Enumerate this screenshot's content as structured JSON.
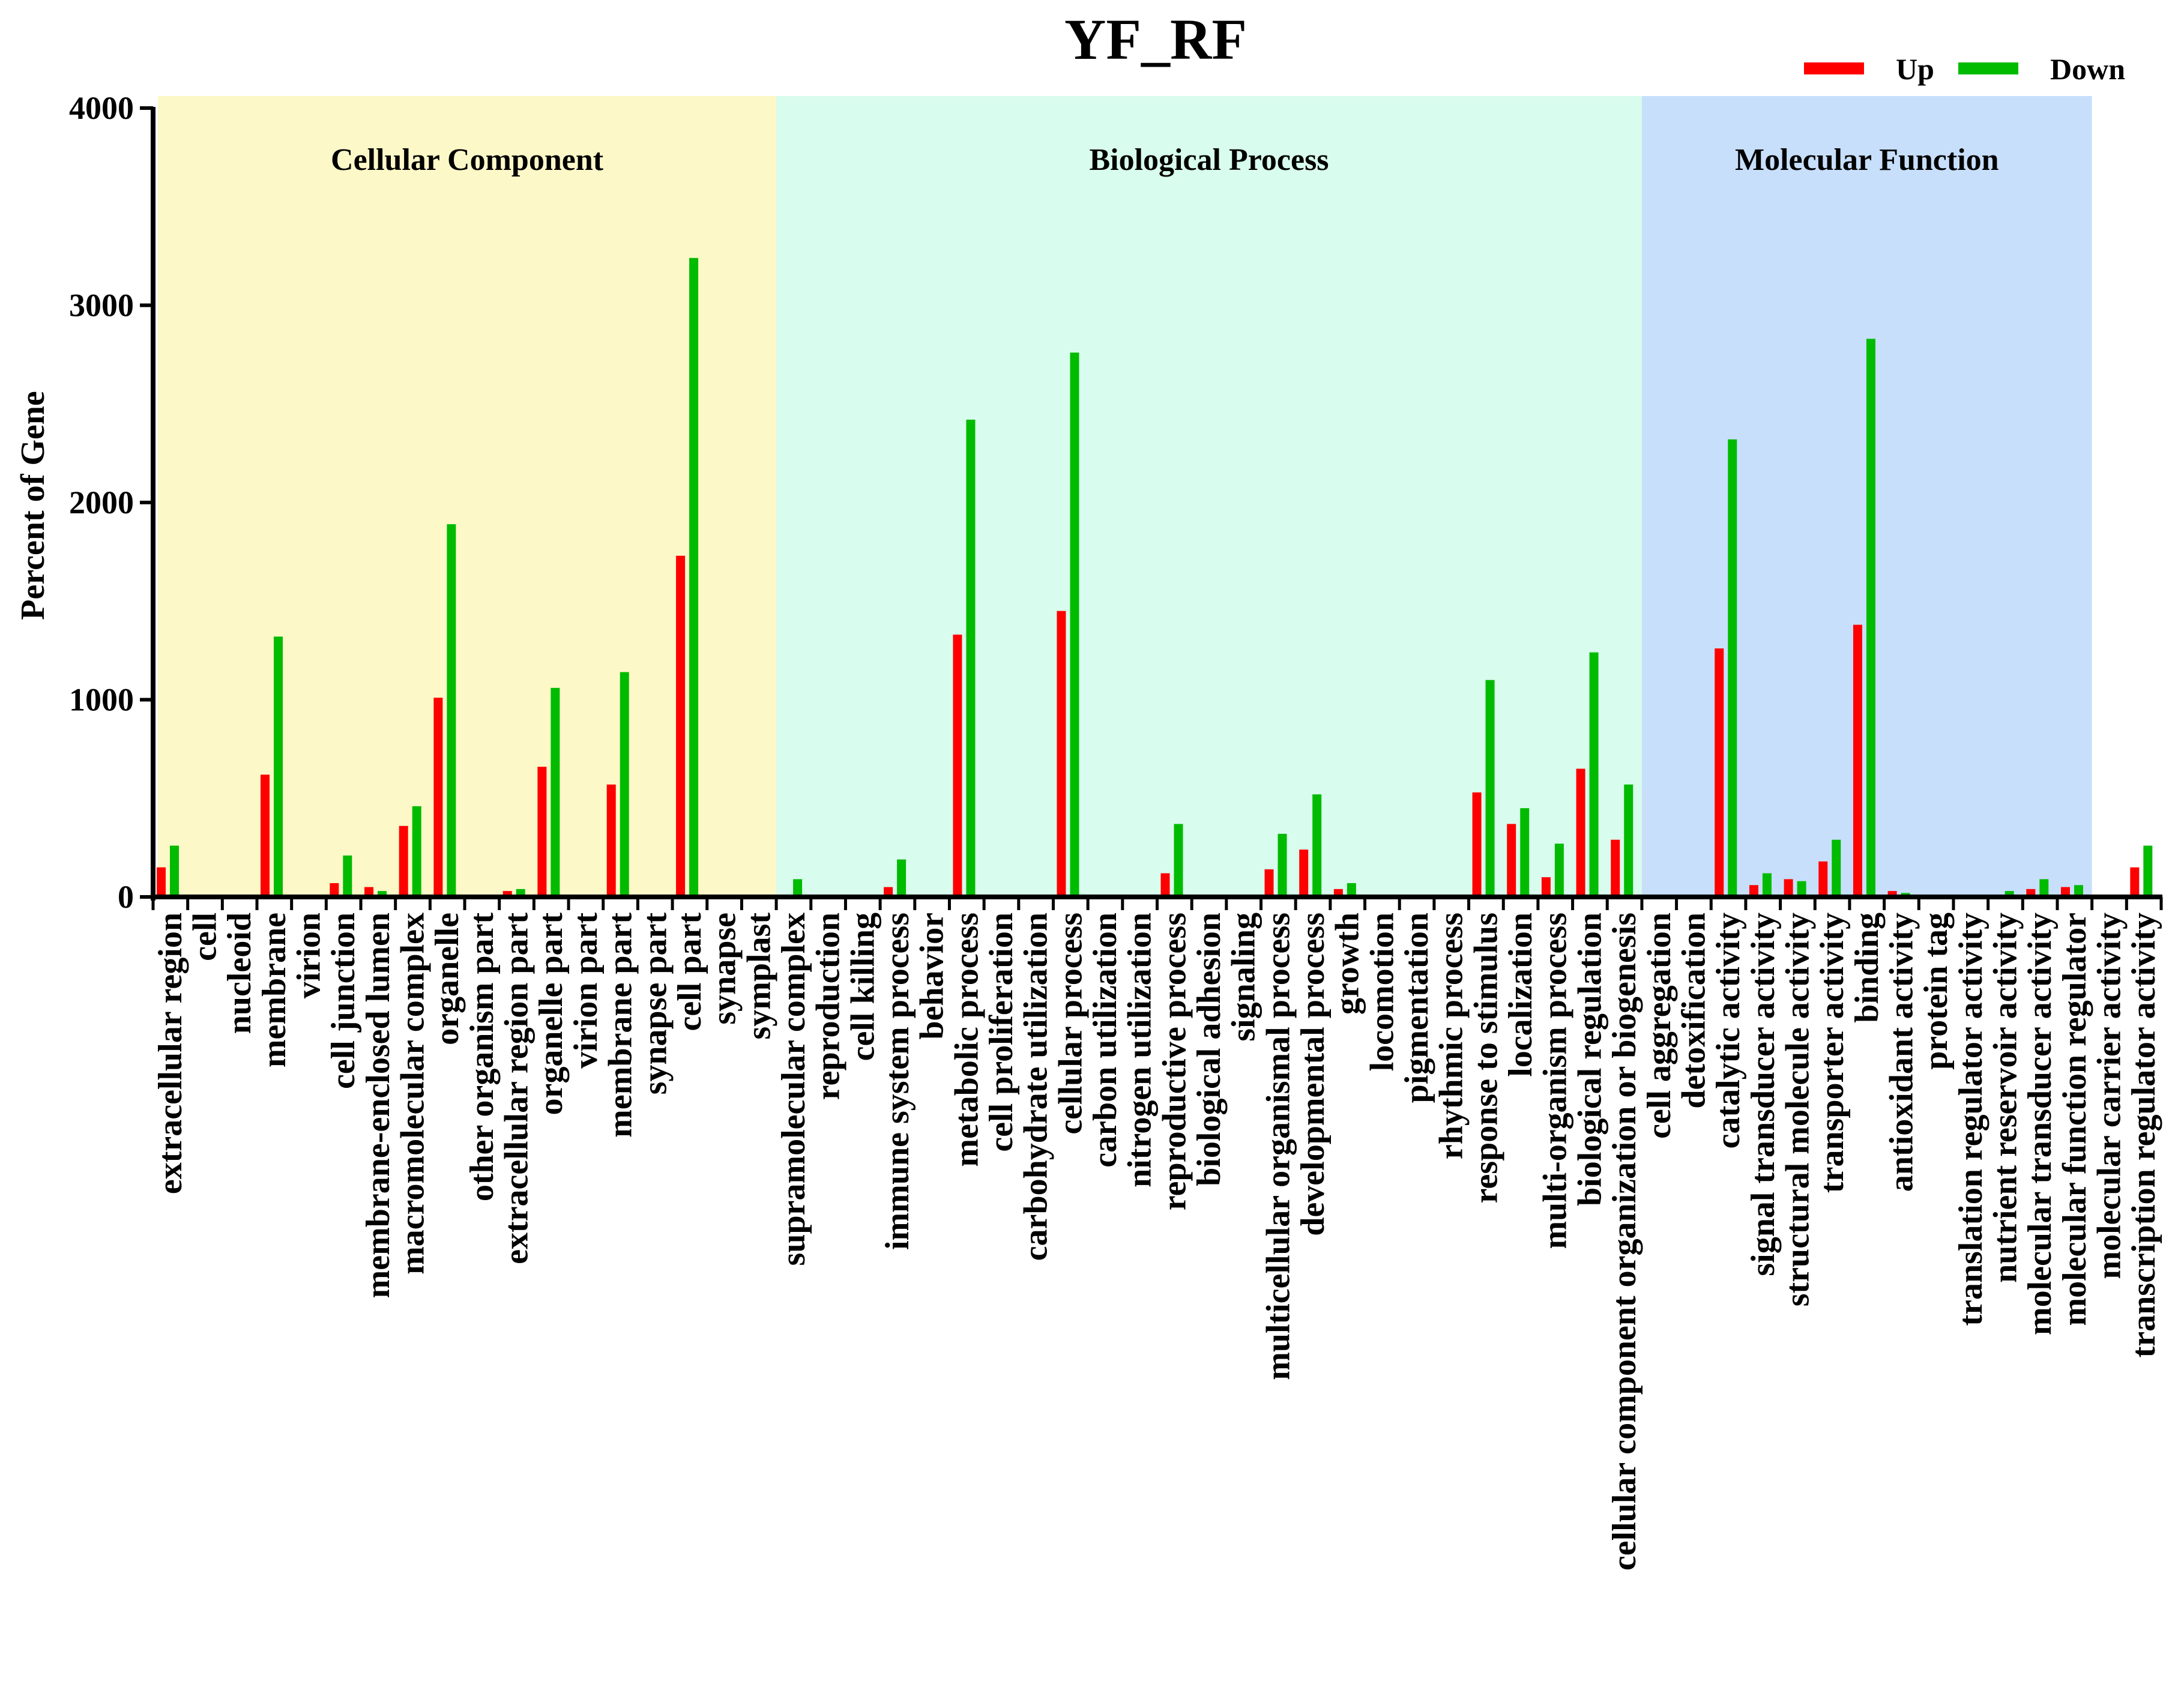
{
  "chart_data": {
    "type": "bar",
    "title": "YF_RF",
    "xlabel": "",
    "ylabel": "Percent of Gene",
    "ylim": [
      0,
      4000
    ],
    "yticks": [
      0,
      1000,
      2000,
      3000,
      4000
    ],
    "legend_position": "top-right",
    "colors": {
      "Up": "#ff0000",
      "Down": "#00bb00"
    },
    "regions": [
      {
        "label": "Cellular Component",
        "color": "#fdf8c8",
        "first_category": 0,
        "last_category": 17
      },
      {
        "label": "Biological Process",
        "color": "#d8fced",
        "first_category": 18,
        "last_category": 42
      },
      {
        "label": "Molecular Function",
        "color": "#c7dffb",
        "first_category": 43,
        "last_category": 55
      }
    ],
    "categories": [
      "extracellular region",
      "cell",
      "nucleoid",
      "membrane",
      "virion",
      "cell junction",
      "membrane-enclosed lumen",
      "macromolecular complex",
      "organelle",
      "other organism part",
      "extracellular region part",
      "organelle part",
      "virion part",
      "membrane part",
      "synapse part",
      "cell part",
      "synapse",
      "symplast",
      "supramolecular complex",
      "reproduction",
      "cell killing",
      "immune system process",
      "behavior",
      "metabolic process",
      "cell proliferation",
      "carbohydrate utilization",
      "cellular process",
      "carbon utilization",
      "nitrogen utilization",
      "reproductive process",
      "biological adhesion",
      "signaling",
      "multicellular organismal process",
      "developmental process",
      "growth",
      "locomotion",
      "pigmentation",
      "rhythmic process",
      "response to stimulus",
      "localization",
      "multi-organism process",
      "biological regulation",
      "cellular component organization or biogenesis",
      "cell aggregation",
      "detoxification",
      "catalytic activity",
      "signal transducer activity",
      "structural molecule activity",
      "transporter activity",
      "binding",
      "antioxidant activity",
      "protein tag",
      "translation regulator activity",
      "nutrient reservoir activity",
      "molecular transducer activity",
      "molecular function regulator",
      "molecular carrier activity",
      "transcription regulator activity"
    ],
    "series": [
      {
        "name": "Up",
        "values": [
          150,
          0,
          0,
          620,
          0,
          70,
          50,
          360,
          1010,
          0,
          30,
          660,
          0,
          570,
          0,
          1730,
          0,
          0,
          0,
          0,
          0,
          50,
          0,
          1330,
          0,
          0,
          1450,
          0,
          0,
          120,
          0,
          0,
          140,
          240,
          40,
          0,
          0,
          0,
          530,
          370,
          100,
          650,
          290,
          0,
          0,
          1260,
          60,
          90,
          180,
          1380,
          30,
          0,
          0,
          10,
          40,
          50,
          0,
          150
        ]
      },
      {
        "name": "Down",
        "values": [
          260,
          0,
          0,
          1320,
          0,
          210,
          30,
          460,
          1890,
          0,
          40,
          1060,
          0,
          1140,
          0,
          3240,
          0,
          0,
          90,
          0,
          0,
          190,
          0,
          2420,
          0,
          0,
          2760,
          0,
          0,
          370,
          0,
          0,
          320,
          520,
          70,
          0,
          0,
          0,
          1100,
          450,
          270,
          1240,
          570,
          0,
          0,
          2320,
          120,
          80,
          290,
          2830,
          20,
          0,
          0,
          30,
          90,
          60,
          0,
          260
        ]
      }
    ]
  }
}
